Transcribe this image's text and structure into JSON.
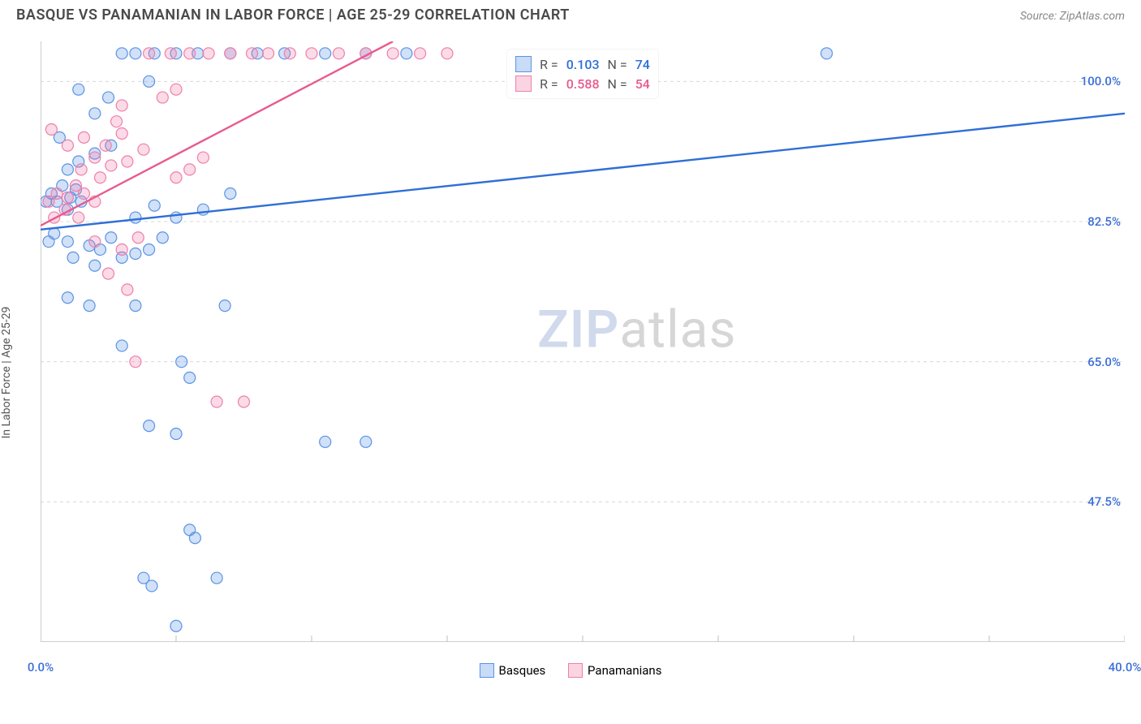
{
  "header": {
    "title": "BASQUE VS PANAMANIAN IN LABOR FORCE | AGE 25-29 CORRELATION CHART",
    "source": "Source: ZipAtlas.com"
  },
  "y_axis_label": "In Labor Force | Age 25-29",
  "watermark": {
    "part1": "ZIP",
    "part2": "atlas"
  },
  "chart": {
    "type": "scatter",
    "background_color": "#ffffff",
    "xlim": [
      0,
      40
    ],
    "ylim": [
      30,
      105
    ],
    "x_ticks": [
      0,
      5,
      10,
      15,
      20,
      25,
      30,
      35,
      40
    ],
    "x_tick_labels": {
      "0": "0.0%",
      "40": "40.0%"
    },
    "x_label_color": "#3b6fd6",
    "y_gridlines": [
      47.5,
      65.0,
      82.5,
      100.0
    ],
    "y_tick_labels": [
      "47.5%",
      "65.0%",
      "82.5%",
      "100.0%"
    ],
    "y_label_color": "#3b6fd6",
    "grid_color": "#d8d8d8",
    "grid_dash": "4 4",
    "axis_color": "#bfbfbf",
    "marker_radius": 7,
    "marker_stroke_width": 1.2,
    "marker_fill_opacity": 0.28,
    "line_width": 2.4,
    "series": [
      {
        "name": "Basques",
        "color": "#5b93e6",
        "line_color": "#2f6fd6",
        "r_value": "0.103",
        "n_value": "74",
        "trend": {
          "x1": 0,
          "y1": 81.5,
          "x2": 40,
          "y2": 96.0
        },
        "points": [
          [
            0.2,
            85
          ],
          [
            0.4,
            86
          ],
          [
            0.6,
            85
          ],
          [
            0.8,
            87
          ],
          [
            1.0,
            84
          ],
          [
            1.1,
            85.5
          ],
          [
            1.3,
            86.5
          ],
          [
            1.5,
            85
          ],
          [
            0.5,
            81
          ],
          [
            0.3,
            80
          ],
          [
            1.0,
            80
          ],
          [
            1.8,
            79.5
          ],
          [
            2.2,
            79
          ],
          [
            2.6,
            80.5
          ],
          [
            1.0,
            89
          ],
          [
            1.4,
            90
          ],
          [
            2.0,
            91
          ],
          [
            2.6,
            92
          ],
          [
            0.7,
            93
          ],
          [
            3.0,
            103.5
          ],
          [
            3.5,
            103.5
          ],
          [
            4.2,
            103.5
          ],
          [
            5.0,
            103.5
          ],
          [
            5.8,
            103.5
          ],
          [
            7.0,
            103.5
          ],
          [
            8.0,
            103.5
          ],
          [
            9.0,
            103.5
          ],
          [
            10.5,
            103.5
          ],
          [
            12.0,
            103.5
          ],
          [
            13.5,
            103.5
          ],
          [
            29.0,
            103.5
          ],
          [
            2.0,
            96
          ],
          [
            2.5,
            98
          ],
          [
            1.4,
            99
          ],
          [
            4.0,
            100
          ],
          [
            1.2,
            78
          ],
          [
            2.0,
            77
          ],
          [
            3.0,
            78
          ],
          [
            3.5,
            78.5
          ],
          [
            1.0,
            73
          ],
          [
            1.8,
            72
          ],
          [
            3.5,
            72
          ],
          [
            6.8,
            72
          ],
          [
            3.0,
            67
          ],
          [
            5.2,
            65
          ],
          [
            5.5,
            63
          ],
          [
            4.0,
            57
          ],
          [
            5.0,
            56
          ],
          [
            10.5,
            55
          ],
          [
            12.0,
            55
          ],
          [
            5.5,
            44
          ],
          [
            5.7,
            43
          ],
          [
            6.5,
            38
          ],
          [
            3.8,
            38
          ],
          [
            4.1,
            37
          ],
          [
            5.0,
            32
          ],
          [
            5.0,
            83
          ],
          [
            6.0,
            84
          ],
          [
            7.0,
            86
          ],
          [
            3.5,
            83
          ],
          [
            4.2,
            84.5
          ],
          [
            4.0,
            79
          ],
          [
            4.5,
            80.5
          ]
        ]
      },
      {
        "name": "Panamanians",
        "color": "#f07fa8",
        "line_color": "#e85a8f",
        "r_value": "0.588",
        "n_value": "54",
        "trend": {
          "x1": 0,
          "y1": 82.0,
          "x2": 13.0,
          "y2": 105.0
        },
        "points": [
          [
            0.3,
            85
          ],
          [
            0.6,
            86
          ],
          [
            1.0,
            85.5
          ],
          [
            1.3,
            87
          ],
          [
            1.6,
            86
          ],
          [
            2.0,
            85
          ],
          [
            0.5,
            83
          ],
          [
            0.9,
            84
          ],
          [
            1.4,
            83
          ],
          [
            2.2,
            88
          ],
          [
            2.6,
            89.5
          ],
          [
            3.2,
            90
          ],
          [
            3.8,
            91.5
          ],
          [
            1.0,
            92
          ],
          [
            1.6,
            93
          ],
          [
            0.4,
            94
          ],
          [
            2.8,
            95
          ],
          [
            4.5,
            98
          ],
          [
            5.0,
            99
          ],
          [
            3.0,
            97
          ],
          [
            4.0,
            103.5
          ],
          [
            4.8,
            103.5
          ],
          [
            5.5,
            103.5
          ],
          [
            6.2,
            103.5
          ],
          [
            7.0,
            103.5
          ],
          [
            7.8,
            103.5
          ],
          [
            8.4,
            103.5
          ],
          [
            9.2,
            103.5
          ],
          [
            10.0,
            103.5
          ],
          [
            11.0,
            103.5
          ],
          [
            12.0,
            103.5
          ],
          [
            13.0,
            103.5
          ],
          [
            14.0,
            103.5
          ],
          [
            15.0,
            103.5
          ],
          [
            2.0,
            80
          ],
          [
            3.0,
            79
          ],
          [
            3.6,
            80.5
          ],
          [
            2.5,
            76
          ],
          [
            3.2,
            74
          ],
          [
            3.5,
            65
          ],
          [
            6.5,
            60
          ],
          [
            7.5,
            60
          ],
          [
            1.5,
            89
          ],
          [
            2.0,
            90.5
          ],
          [
            2.4,
            92
          ],
          [
            3.0,
            93.5
          ],
          [
            5.0,
            88
          ],
          [
            5.5,
            89
          ],
          [
            6.0,
            90.5
          ]
        ]
      }
    ]
  },
  "legend": {
    "stats_r_label": "R  =",
    "stats_n_label": "N  =",
    "bottom": [
      {
        "label": "Basques",
        "color": "#5b93e6"
      },
      {
        "label": "Panamanians",
        "color": "#f07fa8"
      }
    ]
  }
}
